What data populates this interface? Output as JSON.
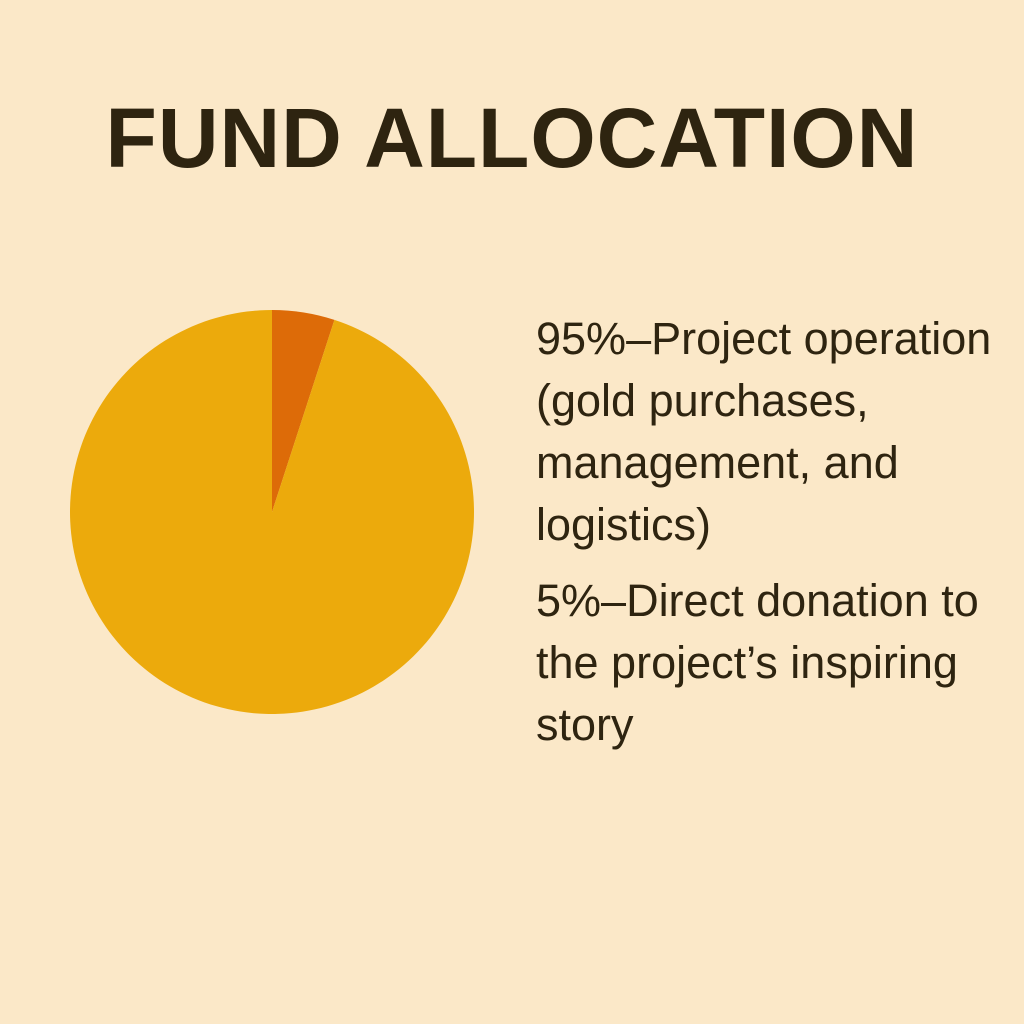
{
  "chart_data": {
    "type": "pie",
    "title": "FUND ALLOCATION",
    "slices": [
      {
        "label": "Direct donation to the project’s inspiring story",
        "value": 5,
        "color": "#dd6b08"
      },
      {
        "label": "Project operation (gold purchases, management, and logistics)",
        "value": 95,
        "color": "#ecaa0c"
      }
    ],
    "legend": [
      "95%–Project operation (gold purchases, management, and logistics)",
      "5%–Direct donation to the project’s inspiring story"
    ],
    "legend_placement": "right"
  }
}
